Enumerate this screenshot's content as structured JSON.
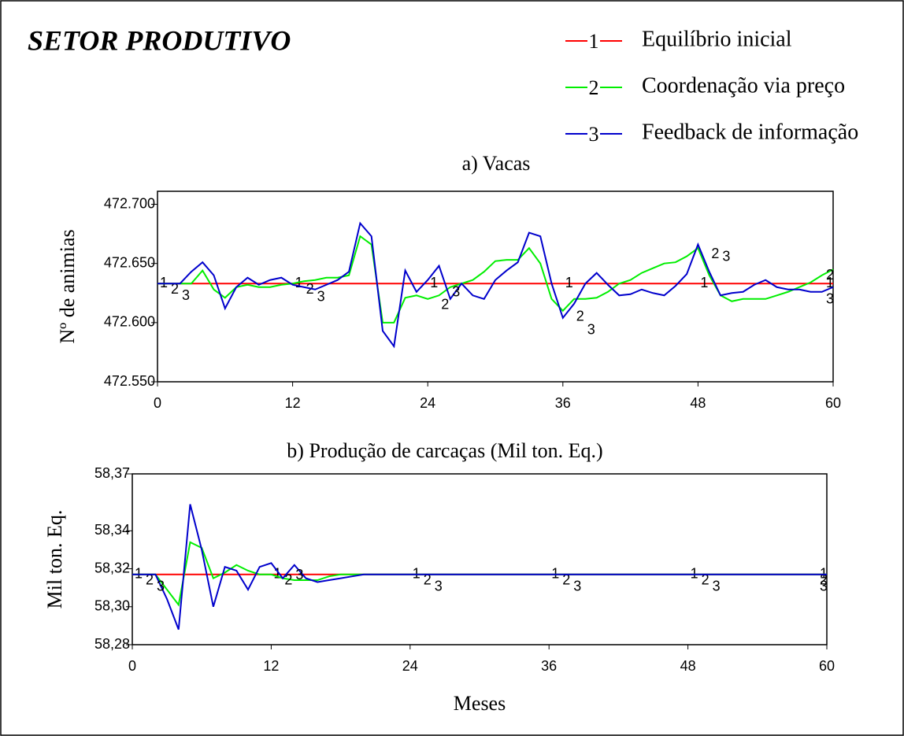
{
  "title": "SETOR PRODUTIVO",
  "chart_data": [
    {
      "type": "line",
      "title": "a) Vacas",
      "ylabel": "Nº de animias",
      "xlim": [
        0,
        60
      ],
      "xticks": [
        0,
        12,
        24,
        36,
        48,
        60
      ],
      "ylim": [
        472.55,
        472.711
      ],
      "yticks": [
        {
          "value": 472.55,
          "label": "472.550"
        },
        {
          "value": 472.6,
          "label": "472.600"
        },
        {
          "value": 472.65,
          "label": "472.650"
        },
        {
          "value": 472.7,
          "label": "472.700"
        }
      ],
      "x": [
        0,
        1,
        2,
        3,
        4,
        5,
        6,
        7,
        8,
        9,
        10,
        11,
        12,
        13,
        14,
        15,
        16,
        17,
        18,
        19,
        20,
        21,
        22,
        23,
        24,
        25,
        26,
        27,
        28,
        29,
        30,
        31,
        32,
        33,
        34,
        35,
        36,
        37,
        38,
        39,
        40,
        41,
        42,
        43,
        44,
        45,
        46,
        47,
        48,
        49,
        50,
        51,
        52,
        53,
        54,
        55,
        56,
        57,
        58,
        59,
        60
      ],
      "series": [
        {
          "name": "Equilíbrio inicial",
          "label": "1",
          "color": "#ff0000",
          "values": [
            472.633,
            472.633,
            472.633,
            472.633,
            472.633,
            472.633,
            472.633,
            472.633,
            472.633,
            472.633,
            472.633,
            472.633,
            472.633,
            472.633,
            472.633,
            472.633,
            472.633,
            472.633,
            472.633,
            472.633,
            472.633,
            472.633,
            472.633,
            472.633,
            472.633,
            472.633,
            472.633,
            472.633,
            472.633,
            472.633,
            472.633,
            472.633,
            472.633,
            472.633,
            472.633,
            472.633,
            472.633,
            472.633,
            472.633,
            472.633,
            472.633,
            472.633,
            472.633,
            472.633,
            472.633,
            472.633,
            472.633,
            472.633,
            472.633,
            472.633,
            472.633,
            472.633,
            472.633,
            472.633,
            472.633,
            472.633,
            472.633,
            472.633,
            472.633,
            472.633,
            472.633
          ]
        },
        {
          "name": "Coordenação via preço",
          "label": "2",
          "color": "#00ee00",
          "values": [
            472.633,
            472.633,
            472.633,
            472.633,
            472.644,
            472.628,
            472.621,
            472.63,
            472.632,
            472.63,
            472.63,
            472.632,
            472.633,
            472.635,
            472.636,
            472.638,
            472.638,
            472.64,
            472.673,
            472.666,
            472.6,
            472.6,
            472.621,
            472.623,
            472.62,
            472.623,
            472.63,
            472.633,
            472.636,
            472.643,
            472.652,
            472.653,
            472.653,
            472.663,
            472.65,
            472.62,
            472.61,
            472.62,
            472.62,
            472.621,
            472.626,
            472.633,
            472.636,
            472.642,
            472.646,
            472.65,
            472.651,
            472.656,
            472.663,
            472.64,
            472.623,
            472.618,
            472.62,
            472.62,
            472.62,
            472.623,
            472.626,
            472.63,
            472.634,
            472.64,
            472.645
          ]
        },
        {
          "name": "Feedback de informação",
          "label": "3",
          "color": "#0000cc",
          "values": [
            472.633,
            472.633,
            472.633,
            472.643,
            472.651,
            472.64,
            472.612,
            472.63,
            472.638,
            472.632,
            472.636,
            472.638,
            472.632,
            472.63,
            472.628,
            472.632,
            472.636,
            472.643,
            472.684,
            472.673,
            472.593,
            472.58,
            472.644,
            472.626,
            472.636,
            472.648,
            472.62,
            472.633,
            472.623,
            472.62,
            472.636,
            472.644,
            472.651,
            472.676,
            472.673,
            472.633,
            472.604,
            472.616,
            472.633,
            472.642,
            472.632,
            472.623,
            472.624,
            472.628,
            472.625,
            472.623,
            472.631,
            472.641,
            472.666,
            472.643,
            472.623,
            472.625,
            472.626,
            472.632,
            472.636,
            472.63,
            472.628,
            472.628,
            472.626,
            472.626,
            472.63
          ]
        }
      ]
    },
    {
      "type": "line",
      "title": "b) Produção de carcaças (Mil ton. Eq.)",
      "ylabel": "Mil ton. Eq.",
      "xlabel": "Meses",
      "xlim": [
        0,
        60
      ],
      "xticks": [
        0,
        12,
        24,
        36,
        48,
        60
      ],
      "ylim": [
        58.28,
        58.37
      ],
      "yticks": [
        {
          "value": 58.28,
          "label": "58,28"
        },
        {
          "value": 58.3,
          "label": "58,30"
        },
        {
          "value": 58.32,
          "label": "58,32"
        },
        {
          "value": 58.34,
          "label": "58,34"
        },
        {
          "value": 58.37,
          "label": "58,37"
        }
      ],
      "x": [
        0,
        1,
        2,
        3,
        4,
        5,
        6,
        7,
        8,
        9,
        10,
        11,
        12,
        13,
        14,
        15,
        16,
        17,
        18,
        19,
        20,
        21,
        22,
        23,
        24,
        25,
        26,
        27,
        28,
        29,
        30,
        31,
        32,
        33,
        34,
        35,
        36,
        37,
        38,
        39,
        40,
        41,
        42,
        43,
        44,
        45,
        46,
        47,
        48,
        49,
        50,
        51,
        52,
        53,
        54,
        55,
        56,
        57,
        58,
        59,
        60
      ],
      "series": [
        {
          "label": "1",
          "color": "#ff0000",
          "values": [
            58.317,
            58.317,
            58.317,
            58.317,
            58.317,
            58.317,
            58.317,
            58.317,
            58.317,
            58.317,
            58.317,
            58.317,
            58.317,
            58.317,
            58.317,
            58.317,
            58.317,
            58.317,
            58.317,
            58.317,
            58.317,
            58.317,
            58.317,
            58.317,
            58.317,
            58.317,
            58.317,
            58.317,
            58.317,
            58.317,
            58.317,
            58.317,
            58.317,
            58.317,
            58.317,
            58.317,
            58.317,
            58.317,
            58.317,
            58.317,
            58.317,
            58.317,
            58.317,
            58.317,
            58.317,
            58.317,
            58.317,
            58.317,
            58.317,
            58.317,
            58.317,
            58.317,
            58.317,
            58.317,
            58.317,
            58.317,
            58.317,
            58.317,
            58.317,
            58.317,
            58.317
          ]
        },
        {
          "label": "2",
          "color": "#00ee00",
          "values": [
            58.317,
            58.317,
            58.317,
            58.309,
            58.301,
            58.334,
            58.331,
            58.315,
            58.318,
            58.322,
            58.319,
            58.317,
            58.317,
            58.315,
            58.314,
            58.314,
            58.314,
            58.316,
            58.317,
            58.317,
            58.317,
            58.317,
            58.317,
            58.317,
            58.317,
            58.317,
            58.317,
            58.317,
            58.317,
            58.317,
            58.317,
            58.317,
            58.317,
            58.317,
            58.317,
            58.317,
            58.317,
            58.317,
            58.317,
            58.317,
            58.317,
            58.317,
            58.317,
            58.317,
            58.317,
            58.317,
            58.317,
            58.317,
            58.317,
            58.317,
            58.317,
            58.317,
            58.317,
            58.317,
            58.317,
            58.317,
            58.317,
            58.317,
            58.317,
            58.317,
            58.317
          ]
        },
        {
          "label": "3",
          "color": "#0000cc",
          "values": [
            58.317,
            58.317,
            58.317,
            58.304,
            58.288,
            58.354,
            58.33,
            58.3,
            58.321,
            58.319,
            58.309,
            58.321,
            58.323,
            58.315,
            58.322,
            58.315,
            58.313,
            58.314,
            58.315,
            58.316,
            58.317,
            58.317,
            58.317,
            58.317,
            58.317,
            58.317,
            58.317,
            58.317,
            58.317,
            58.317,
            58.317,
            58.317,
            58.317,
            58.317,
            58.317,
            58.317,
            58.317,
            58.317,
            58.317,
            58.317,
            58.317,
            58.317,
            58.317,
            58.317,
            58.317,
            58.317,
            58.317,
            58.317,
            58.317,
            58.317,
            58.317,
            58.317,
            58.317,
            58.317,
            58.317,
            58.317,
            58.317,
            58.317,
            58.317,
            58.317,
            58.317
          ]
        }
      ]
    }
  ]
}
